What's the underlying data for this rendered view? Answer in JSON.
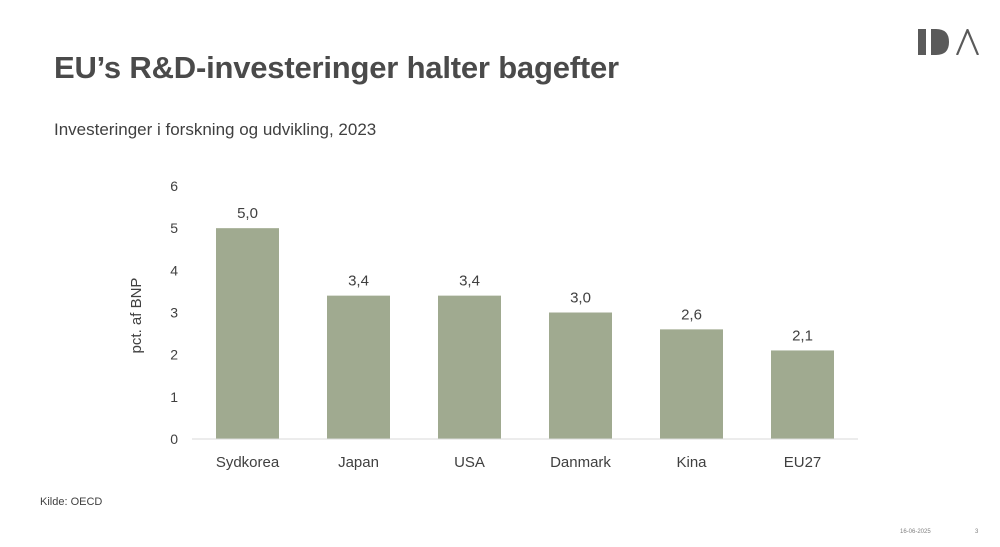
{
  "slide": {
    "title": "EU’s R&D-investeringer halter bagefter",
    "subtitle": "Investeringer i forskning og udvikling, 2023",
    "source": "Kilde: OECD",
    "date": "16-06-2025",
    "page_number": "3",
    "logo_text": "IDA"
  },
  "colors": {
    "bar": "#a0aa90",
    "axis": "#d9d9d9",
    "text": "#404040",
    "logo": "#5a5a5a"
  },
  "chart_data": {
    "type": "bar",
    "categories": [
      "Sydkorea",
      "Japan",
      "USA",
      "Danmark",
      "Kina",
      "EU27"
    ],
    "values": [
      5.0,
      3.4,
      3.4,
      3.0,
      2.6,
      2.1
    ],
    "data_labels": [
      "5,0",
      "3,4",
      "3,4",
      "3,0",
      "2,6",
      "2,1"
    ],
    "ylabel": "pct. af BNP",
    "ylim": [
      0,
      6
    ],
    "yticks": [
      "0",
      "1",
      "2",
      "3",
      "4",
      "5",
      "6"
    ],
    "grid": false,
    "legend": "none"
  }
}
